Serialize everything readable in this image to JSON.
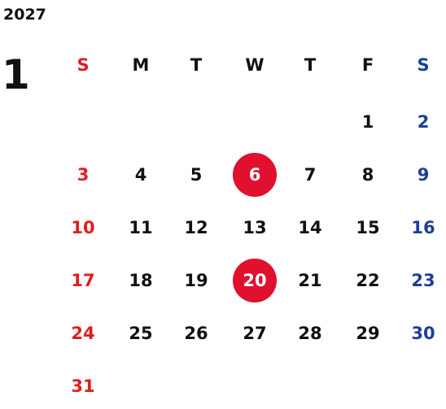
{
  "calendar": {
    "year": "2027",
    "month": "1",
    "weekdays": [
      "S",
      "M",
      "T",
      "W",
      "T",
      "F",
      "S"
    ],
    "column_colors": [
      "#e01e1e",
      "#111111",
      "#111111",
      "#111111",
      "#111111",
      "#111111",
      "#1d3f94"
    ],
    "highlight_color": "#e0102e",
    "weeks": [
      [
        null,
        null,
        null,
        null,
        null,
        {
          "day": 1
        },
        {
          "day": 2
        }
      ],
      [
        {
          "day": 3
        },
        {
          "day": 4
        },
        {
          "day": 5
        },
        {
          "day": 6,
          "highlighted": true
        },
        {
          "day": 7
        },
        {
          "day": 8
        },
        {
          "day": 9
        }
      ],
      [
        {
          "day": 10
        },
        {
          "day": 11
        },
        {
          "day": 12
        },
        {
          "day": 13
        },
        {
          "day": 14
        },
        {
          "day": 15
        },
        {
          "day": 16
        }
      ],
      [
        {
          "day": 17
        },
        {
          "day": 18
        },
        {
          "day": 19
        },
        {
          "day": 20,
          "highlighted": true
        },
        {
          "day": 21
        },
        {
          "day": 22
        },
        {
          "day": 23
        }
      ],
      [
        {
          "day": 24
        },
        {
          "day": 25
        },
        {
          "day": 26
        },
        {
          "day": 27
        },
        {
          "day": 28
        },
        {
          "day": 29
        },
        {
          "day": 30
        }
      ],
      [
        {
          "day": 31
        },
        null,
        null,
        null,
        null,
        null,
        null
      ]
    ]
  }
}
